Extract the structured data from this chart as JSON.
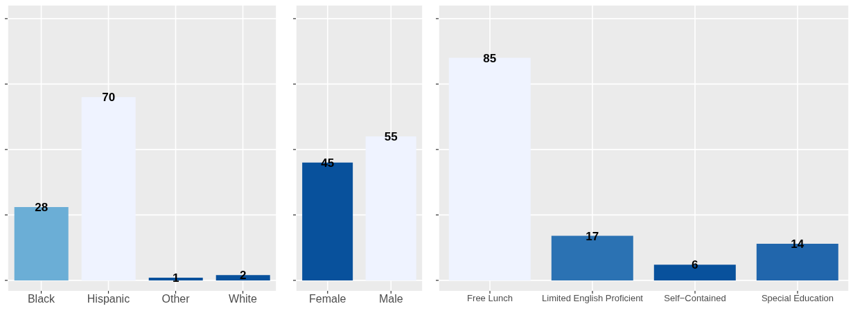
{
  "chart_data": [
    {
      "type": "bar",
      "categories": [
        "Black",
        "Hispanic",
        "Other",
        "White"
      ],
      "values": [
        28,
        70,
        1,
        2
      ],
      "colors": [
        "#6baed6",
        "#eff3ff",
        "#08519c",
        "#08519c"
      ],
      "ylim": [
        -4,
        105
      ],
      "yticks": [
        {
          "value": 0,
          "label": null
        },
        {
          "value": 25,
          "label": null
        },
        {
          "value": 50,
          "label": null
        },
        {
          "value": 75,
          "label": null
        },
        {
          "value": 100,
          "label": null
        }
      ],
      "tick_labels": "x",
      "data_labels": true,
      "grid": true
    },
    {
      "type": "bar",
      "categories": [
        "Female",
        "Male"
      ],
      "values": [
        45,
        55
      ],
      "colors": [
        "#08519c",
        "#eff3ff"
      ],
      "ylim": [
        -4,
        105
      ],
      "yticks": [
        {
          "value": 0,
          "label": null
        },
        {
          "value": 25,
          "label": null
        },
        {
          "value": 50,
          "label": null
        },
        {
          "value": 75,
          "label": null
        },
        {
          "value": 100,
          "label": null
        }
      ],
      "tick_labels": "x",
      "data_labels": true,
      "grid": true
    },
    {
      "type": "bar",
      "categories": [
        "Free Lunch",
        "Limited English Proficient",
        "Self−Contained",
        "Special Education"
      ],
      "values": [
        85,
        17,
        6,
        14
      ],
      "colors": [
        "#eff3ff",
        "#2b72b3",
        "#08519c",
        "#2166ac"
      ],
      "ylim": [
        -4,
        105
      ],
      "yticks": [
        {
          "value": 0,
          "label": null
        },
        {
          "value": 25,
          "label": null
        },
        {
          "value": 50,
          "label": null
        },
        {
          "value": 75,
          "label": null
        },
        {
          "value": 100,
          "label": null
        }
      ],
      "tick_labels": "x",
      "data_labels": true,
      "grid": true
    }
  ]
}
